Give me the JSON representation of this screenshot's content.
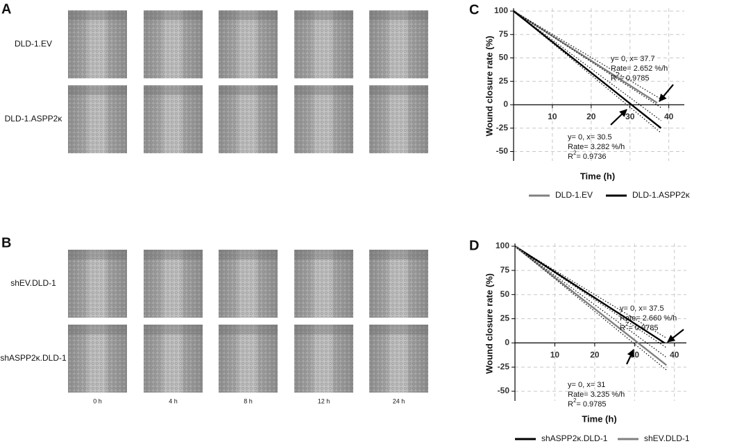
{
  "panels": [
    {
      "letter": "A",
      "rows": [
        "DLD-1.EV",
        "DLD-1.ASPP2κ"
      ]
    },
    {
      "letter": "B",
      "rows": [
        "shEV.DLD-1",
        "shASPP2κ.DLD-1"
      ],
      "timepoints": [
        "0 h",
        "4 h",
        "8 h",
        "12 h",
        "24 h"
      ]
    }
  ],
  "chart_data": [
    {
      "type": "line",
      "letter": "C",
      "xlabel": "Time (h)",
      "ylabel": "Wound closure rate (%)",
      "xlim": [
        0,
        44
      ],
      "ylim": [
        -60,
        100
      ],
      "xticks": [
        10,
        20,
        30,
        40
      ],
      "yticks": [
        100,
        75,
        50,
        25,
        0,
        -25,
        -50
      ],
      "grid": true,
      "series": [
        {
          "name": "DLD-1.EV",
          "color": "#808080",
          "x": [
            0,
            37
          ],
          "values": [
            100,
            2
          ]
        },
        {
          "name": "DLD-1.ASPP2κ",
          "color": "#000000",
          "x": [
            0,
            38
          ],
          "values": [
            100,
            -25
          ]
        },
        {
          "color": "#000000",
          "style": "dotted",
          "x": [
            0,
            38
          ],
          "values": [
            100,
            6
          ]
        },
        {
          "color": "#000000",
          "style": "dotted",
          "x": [
            0,
            38
          ],
          "values": [
            100,
            -3
          ]
        },
        {
          "color": "#000000",
          "style": "dotted",
          "x": [
            0,
            38
          ],
          "values": [
            100,
            -17
          ]
        },
        {
          "color": "#000000",
          "style": "dotted",
          "x": [
            0,
            38
          ],
          "values": [
            100,
            -30
          ]
        }
      ],
      "annotations": [
        {
          "lines": [
            "y= 0, x= 37.7",
            "Rate= 2.652 %/h"
          ],
          "r2": {
            "base": "R",
            "sup": "2",
            "rest": "= 0.9785"
          }
        },
        {
          "lines": [
            "y= 0, x= 30.5",
            "Rate= 3.282 %/h"
          ],
          "r2": {
            "base": "R",
            "sup": "2",
            "rest": "= 0.9736"
          }
        }
      ]
    },
    {
      "type": "line",
      "letter": "D",
      "xlabel": "Time (h)",
      "ylabel": "Wound closure rate (%)",
      "xlim": [
        0,
        43
      ],
      "ylim": [
        -60,
        100
      ],
      "xticks": [
        10,
        20,
        30,
        40
      ],
      "yticks": [
        100,
        75,
        50,
        25,
        0,
        -25,
        -50
      ],
      "grid": true,
      "series": [
        {
          "name": "shASPP2κ.DLD-1",
          "color": "#000000",
          "x": [
            0,
            37.5
          ],
          "values": [
            100,
            0
          ]
        },
        {
          "name": "shEV.DLD-1",
          "color": "#808080",
          "x": [
            0,
            38
          ],
          "values": [
            100,
            -23
          ]
        },
        {
          "color": "#000000",
          "style": "dotted",
          "x": [
            0,
            38
          ],
          "values": [
            100,
            5
          ]
        },
        {
          "color": "#000000",
          "style": "dotted",
          "x": [
            0,
            38
          ],
          "values": [
            100,
            -5
          ]
        },
        {
          "color": "#000000",
          "style": "dotted",
          "x": [
            0,
            38
          ],
          "values": [
            100,
            -15
          ]
        },
        {
          "color": "#000000",
          "style": "dotted",
          "x": [
            0,
            38
          ],
          "values": [
            100,
            -28
          ]
        }
      ],
      "annotations": [
        {
          "lines": [
            "y= 0, x= 37.5",
            "Rate= 2.660 %/h"
          ],
          "r2": {
            "base": "R",
            "sup": "2",
            "rest": "= 0.9785"
          }
        },
        {
          "lines": [
            "y= 0, x= 31",
            "Rate= 3.235 %/h"
          ],
          "r2": {
            "base": "R",
            "sup": "2",
            "rest": "= 0.9785"
          }
        }
      ]
    }
  ]
}
